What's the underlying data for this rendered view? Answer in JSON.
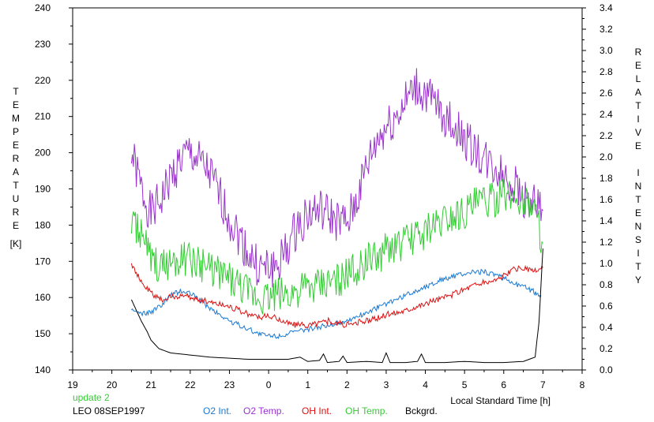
{
  "chart_data": {
    "type": "line",
    "left_axis_label": "TEMPERATURE",
    "left_axis_unit": "[K]",
    "right_axis_label": "RELATIVE INTENSITY",
    "x_axis_label": "Local Standard Time [h]",
    "x_ticks": [
      "19",
      "20",
      "21",
      "22",
      "23",
      "0",
      "1",
      "2",
      "3",
      "4",
      "5",
      "6",
      "7",
      "8"
    ],
    "y_left_ticks": [
      140,
      150,
      160,
      170,
      180,
      190,
      200,
      210,
      220,
      230,
      240
    ],
    "y_right_ticks": [
      "0.0",
      "0.2",
      "0.4",
      "0.6",
      "0.8",
      "1.0",
      "1.2",
      "1.4",
      "1.6",
      "1.8",
      "2.0",
      "2.2",
      "2.4",
      "2.6",
      "2.8",
      "3.0",
      "3.2",
      "3.4"
    ],
    "x_range_hours": [
      19,
      32
    ],
    "y_left_range": [
      140,
      240
    ],
    "y_right_range": [
      0.0,
      3.4
    ],
    "series": [
      {
        "name": "O2 Temp.",
        "color": "#9933cc",
        "axis": "left",
        "x": [
          20.5,
          20.75,
          21.0,
          21.25,
          21.5,
          21.75,
          22.0,
          22.25,
          22.5,
          22.75,
          23.0,
          23.25,
          23.5,
          23.75,
          24.0,
          24.25,
          24.5,
          24.75,
          25.0,
          25.25,
          25.5,
          25.75,
          26.0,
          26.25,
          26.5,
          26.75,
          27.0,
          27.25,
          27.5,
          27.75,
          28.0,
          28.25,
          28.5,
          28.75,
          29.0,
          29.25,
          29.5,
          29.75,
          30.0,
          30.25,
          30.5,
          30.75,
          31.0
        ],
        "y": [
          200,
          190,
          183,
          187,
          193,
          198,
          200,
          197,
          194,
          188,
          182,
          177,
          172,
          168,
          168,
          169,
          174,
          180,
          183,
          184,
          183,
          181,
          180,
          187,
          196,
          203,
          207,
          210,
          214,
          218,
          216,
          213,
          210,
          207,
          204,
          201,
          198,
          196,
          194,
          191,
          188,
          186,
          184
        ]
      },
      {
        "name": "OH Temp.",
        "color": "#33cc33",
        "axis": "left",
        "x": [
          20.5,
          20.75,
          21.0,
          21.25,
          21.5,
          21.75,
          22.0,
          22.25,
          22.5,
          22.75,
          23.0,
          23.25,
          23.5,
          23.75,
          24.0,
          24.25,
          24.5,
          24.75,
          25.0,
          25.25,
          25.5,
          25.75,
          26.0,
          26.25,
          26.5,
          26.75,
          27.0,
          27.25,
          27.5,
          27.75,
          28.0,
          28.25,
          28.5,
          28.75,
          29.0,
          29.25,
          29.5,
          29.75,
          30.0,
          30.25,
          30.5,
          30.75,
          31.0
        ],
        "y": [
          180,
          178,
          170,
          168,
          170,
          171,
          170,
          169,
          168,
          167,
          165,
          163,
          161,
          160,
          160,
          161,
          161,
          162,
          162,
          163,
          164,
          165,
          166,
          168,
          170,
          171,
          173,
          174,
          175,
          177,
          178,
          180,
          182,
          183,
          184,
          186,
          187,
          187,
          188,
          188,
          187,
          186,
          175
        ]
      },
      {
        "name": "O2 Int.",
        "color": "#1a7ad4",
        "axis": "right",
        "x": [
          20.5,
          20.75,
          21.0,
          21.25,
          21.5,
          21.75,
          22.0,
          22.25,
          22.5,
          22.75,
          23.0,
          23.25,
          23.5,
          23.75,
          24.0,
          24.25,
          24.5,
          24.75,
          25.0,
          25.25,
          25.5,
          25.75,
          26.0,
          26.25,
          26.5,
          26.75,
          27.0,
          27.25,
          27.5,
          27.75,
          28.0,
          28.25,
          28.5,
          28.75,
          29.0,
          29.25,
          29.5,
          29.75,
          30.0,
          30.25,
          30.5,
          30.75,
          30.95
        ],
        "y": [
          0.56,
          0.52,
          0.54,
          0.6,
          0.7,
          0.74,
          0.72,
          0.66,
          0.58,
          0.52,
          0.46,
          0.42,
          0.38,
          0.34,
          0.32,
          0.32,
          0.34,
          0.36,
          0.38,
          0.4,
          0.42,
          0.44,
          0.46,
          0.5,
          0.54,
          0.58,
          0.62,
          0.66,
          0.7,
          0.74,
          0.78,
          0.82,
          0.86,
          0.88,
          0.9,
          0.92,
          0.92,
          0.9,
          0.86,
          0.82,
          0.78,
          0.74,
          0.7
        ]
      },
      {
        "name": "OH Int.",
        "color": "#dd1111",
        "axis": "right",
        "x": [
          20.5,
          20.75,
          21.0,
          21.25,
          21.5,
          21.75,
          22.0,
          22.25,
          22.5,
          22.75,
          23.0,
          23.25,
          23.5,
          23.75,
          24.0,
          24.25,
          24.5,
          24.75,
          25.0,
          25.25,
          25.5,
          25.75,
          26.0,
          26.25,
          26.5,
          26.75,
          27.0,
          27.25,
          27.5,
          27.75,
          28.0,
          28.25,
          28.5,
          28.75,
          29.0,
          29.25,
          29.5,
          29.75,
          30.0,
          30.25,
          30.5,
          30.75,
          31.0
        ],
        "y": [
          1.0,
          0.82,
          0.72,
          0.66,
          0.68,
          0.7,
          0.68,
          0.66,
          0.64,
          0.62,
          0.6,
          0.56,
          0.52,
          0.5,
          0.5,
          0.48,
          0.44,
          0.42,
          0.42,
          0.44,
          0.46,
          0.44,
          0.42,
          0.44,
          0.46,
          0.48,
          0.52,
          0.54,
          0.56,
          0.6,
          0.62,
          0.66,
          0.68,
          0.72,
          0.76,
          0.8,
          0.82,
          0.84,
          0.88,
          0.94,
          0.96,
          0.92,
          0.96
        ]
      },
      {
        "name": "Bckgrd.",
        "color": "#000000",
        "axis": "right",
        "x": [
          20.5,
          20.6,
          20.75,
          20.9,
          21.0,
          21.2,
          21.5,
          22.0,
          22.5,
          23.0,
          23.5,
          24.0,
          24.5,
          24.8,
          25.0,
          25.3,
          25.4,
          25.5,
          25.8,
          25.9,
          26.0,
          26.5,
          26.9,
          27.0,
          27.1,
          27.5,
          27.8,
          27.9,
          28.0,
          28.5,
          29.0,
          29.5,
          30.0,
          30.5,
          30.8,
          30.9,
          31.0
        ],
        "y": [
          0.66,
          0.58,
          0.46,
          0.36,
          0.28,
          0.2,
          0.16,
          0.14,
          0.12,
          0.11,
          0.1,
          0.1,
          0.1,
          0.12,
          0.08,
          0.09,
          0.15,
          0.07,
          0.08,
          0.13,
          0.07,
          0.08,
          0.07,
          0.16,
          0.07,
          0.07,
          0.08,
          0.15,
          0.07,
          0.07,
          0.08,
          0.07,
          0.07,
          0.08,
          0.12,
          0.45,
          1.14
        ]
      }
    ]
  },
  "legend": {
    "update": "update 2",
    "station": "LEO 08SEP1997",
    "o2_int": "O2 Int.",
    "o2_temp": "O2 Temp.",
    "oh_int": "OH Int.",
    "oh_temp": "OH Temp.",
    "bckgrd": "Bckgrd."
  },
  "colors": {
    "update": "#33cc33",
    "o2_int": "#1a7ad4",
    "o2_temp": "#9933cc",
    "oh_int": "#dd1111",
    "oh_temp": "#33cc33",
    "bckgrd": "#000000"
  }
}
